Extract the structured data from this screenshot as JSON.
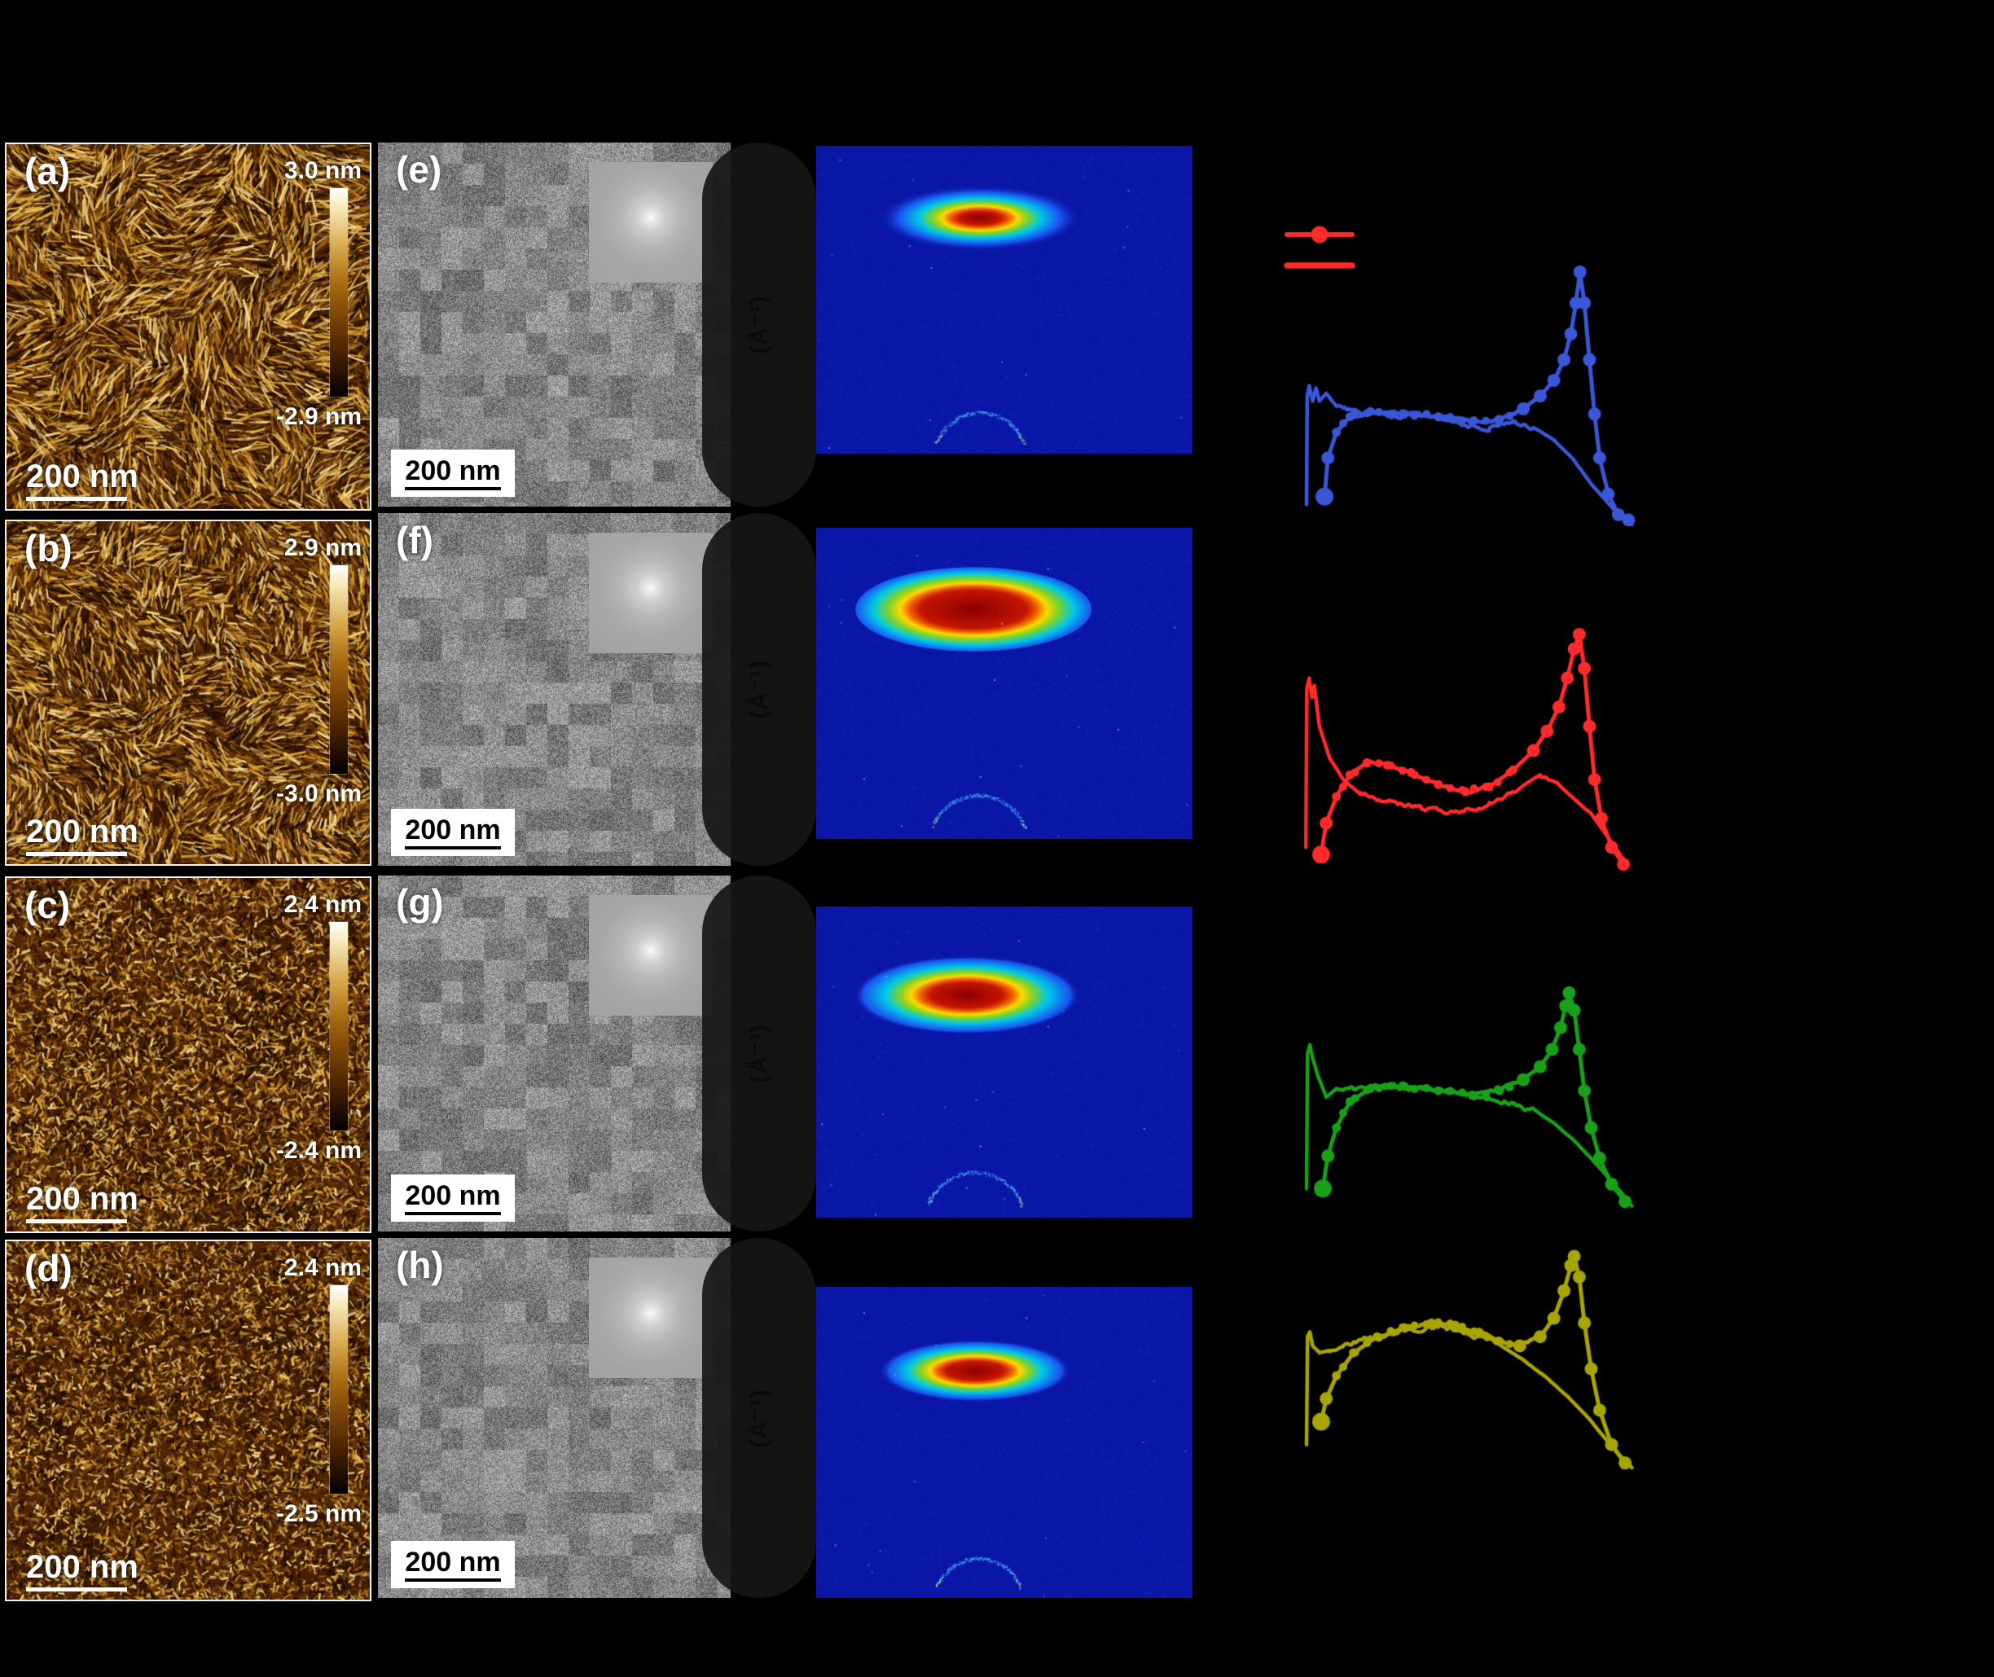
{
  "colors": {
    "background": "#000000",
    "panel_label": "#ffffff",
    "afm_base": "#4e2506",
    "afm_palette": [
      "#170800",
      "#2e1200",
      "#481f00",
      "#613008",
      "#7c440c",
      "#9a5c12",
      "#bc7c1c",
      "#dfa83c",
      "#f7d98c"
    ],
    "giwaxs_bg": "#0a17a6",
    "giwaxs_jet": [
      "#8b0000",
      "#c41500",
      "#f06000",
      "#ffd800",
      "#7fd428",
      "#00c8e8",
      "#1a52f0"
    ],
    "legend_red": "#ff2a2a",
    "row_colors": [
      "#3a57d8",
      "#ff2a2a",
      "#18a018",
      "#a8a400"
    ]
  },
  "afm_panels": [
    {
      "label": "(a)",
      "scale_max": "3.0 nm",
      "scale_min": "-2.9 nm",
      "scalebar": "200 nm"
    },
    {
      "label": "(b)",
      "scale_max": "2.9 nm",
      "scale_min": "-3.0 nm",
      "scalebar": "200 nm"
    },
    {
      "label": "(c)",
      "scale_max": "2.4 nm",
      "scale_min": "-2.4 nm",
      "scalebar": "200 nm"
    },
    {
      "label": "(d)",
      "scale_max": "2.4 nm",
      "scale_min": "-2.5 nm",
      "scalebar": "200 nm"
    }
  ],
  "tem_panels": [
    {
      "label": "(e)",
      "scalebar": "200 nm"
    },
    {
      "label": "(f)",
      "scalebar": "200 nm"
    },
    {
      "label": "(g)",
      "scalebar": "200 nm"
    },
    {
      "label": "(h)",
      "scalebar": "200 nm"
    }
  ],
  "giwaxs_panels": [
    {
      "axis_label": "(Å⁻¹)"
    },
    {
      "axis_label": "(Å⁻¹)"
    },
    {
      "axis_label": "(Å⁻¹)"
    },
    {
      "axis_label": "(Å⁻¹)"
    }
  ],
  "legend": {
    "color": "#ff2a2a",
    "items": [
      {
        "symbol": "line-with-circle-marker"
      },
      {
        "symbol": "solid-line"
      }
    ]
  },
  "chart_data": [
    {
      "type": "line",
      "row": 1,
      "color": "#3a57d8",
      "title": "",
      "xlabel": "",
      "ylabel": "",
      "axes_visible": false,
      "series": [
        {
          "name": "marked-profile",
          "marker": "circle",
          "points": [
            [
              0.065,
              0.13
            ],
            [
              0.075,
              0.28
            ],
            [
              0.1,
              0.38
            ],
            [
              0.14,
              0.44
            ],
            [
              0.2,
              0.46
            ],
            [
              0.3,
              0.45
            ],
            [
              0.4,
              0.44
            ],
            [
              0.5,
              0.42
            ],
            [
              0.58,
              0.43
            ],
            [
              0.65,
              0.47
            ],
            [
              0.7,
              0.52
            ],
            [
              0.74,
              0.58
            ],
            [
              0.77,
              0.66
            ],
            [
              0.79,
              0.76
            ],
            [
              0.805,
              0.88
            ],
            [
              0.817,
              1.0
            ],
            [
              0.83,
              0.88
            ],
            [
              0.845,
              0.66
            ],
            [
              0.86,
              0.45
            ],
            [
              0.875,
              0.28
            ],
            [
              0.9,
              0.14
            ],
            [
              0.93,
              0.06
            ],
            [
              0.96,
              0.04
            ]
          ]
        },
        {
          "name": "plain-profile",
          "points": [
            [
              0.012,
              0.1
            ],
            [
              0.014,
              0.52
            ],
            [
              0.02,
              0.56
            ],
            [
              0.03,
              0.5
            ],
            [
              0.04,
              0.55
            ],
            [
              0.05,
              0.5
            ],
            [
              0.07,
              0.53
            ],
            [
              0.1,
              0.48
            ],
            [
              0.15,
              0.46
            ],
            [
              0.25,
              0.46
            ],
            [
              0.35,
              0.44
            ],
            [
              0.45,
              0.41
            ],
            [
              0.55,
              0.4
            ],
            [
              0.62,
              0.42
            ],
            [
              0.68,
              0.4
            ],
            [
              0.74,
              0.35
            ],
            [
              0.8,
              0.27
            ],
            [
              0.85,
              0.18
            ],
            [
              0.89,
              0.12
            ],
            [
              0.93,
              0.06
            ],
            [
              0.97,
              0.03
            ]
          ]
        }
      ]
    },
    {
      "type": "line",
      "row": 2,
      "color": "#ff2a2a",
      "title": "",
      "xlabel": "",
      "ylabel": "",
      "axes_visible": false,
      "series": [
        {
          "name": "marked-profile",
          "marker": "circle",
          "points": [
            [
              0.055,
              0.09
            ],
            [
              0.07,
              0.22
            ],
            [
              0.1,
              0.33
            ],
            [
              0.14,
              0.42
            ],
            [
              0.19,
              0.47
            ],
            [
              0.25,
              0.46
            ],
            [
              0.32,
              0.43
            ],
            [
              0.4,
              0.38
            ],
            [
              0.48,
              0.35
            ],
            [
              0.55,
              0.37
            ],
            [
              0.62,
              0.44
            ],
            [
              0.68,
              0.52
            ],
            [
              0.72,
              0.6
            ],
            [
              0.755,
              0.7
            ],
            [
              0.78,
              0.82
            ],
            [
              0.8,
              0.94
            ],
            [
              0.815,
              1.0
            ],
            [
              0.83,
              0.86
            ],
            [
              0.845,
              0.62
            ],
            [
              0.86,
              0.4
            ],
            [
              0.88,
              0.24
            ],
            [
              0.91,
              0.12
            ],
            [
              0.945,
              0.05
            ]
          ]
        },
        {
          "name": "plain-profile",
          "points": [
            [
              0.01,
              0.12
            ],
            [
              0.013,
              0.78
            ],
            [
              0.02,
              0.82
            ],
            [
              0.028,
              0.74
            ],
            [
              0.035,
              0.79
            ],
            [
              0.05,
              0.62
            ],
            [
              0.08,
              0.49
            ],
            [
              0.12,
              0.4
            ],
            [
              0.17,
              0.34
            ],
            [
              0.25,
              0.31
            ],
            [
              0.35,
              0.28
            ],
            [
              0.45,
              0.26
            ],
            [
              0.55,
              0.3
            ],
            [
              0.63,
              0.36
            ],
            [
              0.7,
              0.42
            ],
            [
              0.75,
              0.38
            ],
            [
              0.8,
              0.32
            ],
            [
              0.85,
              0.26
            ],
            [
              0.9,
              0.16
            ],
            [
              0.95,
              0.06
            ]
          ]
        }
      ]
    },
    {
      "type": "line",
      "row": 3,
      "color": "#18a018",
      "title": "",
      "xlabel": "",
      "ylabel": "",
      "axes_visible": false,
      "series": [
        {
          "name": "marked-profile",
          "marker": "circle",
          "points": [
            [
              0.06,
              0.1
            ],
            [
              0.075,
              0.25
            ],
            [
              0.1,
              0.38
            ],
            [
              0.14,
              0.5
            ],
            [
              0.2,
              0.56
            ],
            [
              0.3,
              0.57
            ],
            [
              0.4,
              0.55
            ],
            [
              0.5,
              0.53
            ],
            [
              0.58,
              0.55
            ],
            [
              0.65,
              0.6
            ],
            [
              0.7,
              0.66
            ],
            [
              0.735,
              0.74
            ],
            [
              0.76,
              0.84
            ],
            [
              0.775,
              0.94
            ],
            [
              0.785,
              1.0
            ],
            [
              0.8,
              0.92
            ],
            [
              0.815,
              0.74
            ],
            [
              0.83,
              0.55
            ],
            [
              0.85,
              0.38
            ],
            [
              0.875,
              0.24
            ],
            [
              0.91,
              0.12
            ],
            [
              0.95,
              0.04
            ]
          ]
        },
        {
          "name": "plain-profile",
          "points": [
            [
              0.012,
              0.1
            ],
            [
              0.015,
              0.72
            ],
            [
              0.022,
              0.76
            ],
            [
              0.03,
              0.7
            ],
            [
              0.045,
              0.62
            ],
            [
              0.07,
              0.52
            ],
            [
              0.1,
              0.56
            ],
            [
              0.15,
              0.57
            ],
            [
              0.25,
              0.58
            ],
            [
              0.35,
              0.56
            ],
            [
              0.45,
              0.54
            ],
            [
              0.55,
              0.52
            ],
            [
              0.62,
              0.5
            ],
            [
              0.68,
              0.46
            ],
            [
              0.74,
              0.4
            ],
            [
              0.8,
              0.32
            ],
            [
              0.85,
              0.24
            ],
            [
              0.9,
              0.15
            ],
            [
              0.94,
              0.08
            ],
            [
              0.97,
              0.02
            ]
          ]
        }
      ]
    },
    {
      "type": "line",
      "row": 4,
      "color": "#a8a400",
      "title": "",
      "xlabel": "",
      "ylabel": "",
      "axes_visible": false,
      "series": [
        {
          "name": "marked-profile",
          "marker": "circle",
          "points": [
            [
              0.055,
              0.25
            ],
            [
              0.07,
              0.35
            ],
            [
              0.1,
              0.45
            ],
            [
              0.15,
              0.55
            ],
            [
              0.22,
              0.62
            ],
            [
              0.3,
              0.66
            ],
            [
              0.38,
              0.68
            ],
            [
              0.45,
              0.67
            ],
            [
              0.52,
              0.64
            ],
            [
              0.58,
              0.6
            ],
            [
              0.64,
              0.58
            ],
            [
              0.7,
              0.62
            ],
            [
              0.74,
              0.7
            ],
            [
              0.77,
              0.82
            ],
            [
              0.79,
              0.93
            ],
            [
              0.8,
              0.97
            ],
            [
              0.815,
              0.88
            ],
            [
              0.83,
              0.68
            ],
            [
              0.85,
              0.48
            ],
            [
              0.875,
              0.3
            ],
            [
              0.91,
              0.15
            ],
            [
              0.95,
              0.07
            ]
          ]
        },
        {
          "name": "plain-profile",
          "points": [
            [
              0.012,
              0.15
            ],
            [
              0.015,
              0.62
            ],
            [
              0.022,
              0.64
            ],
            [
              0.03,
              0.58
            ],
            [
              0.05,
              0.55
            ],
            [
              0.08,
              0.56
            ],
            [
              0.12,
              0.58
            ],
            [
              0.2,
              0.62
            ],
            [
              0.3,
              0.65
            ],
            [
              0.4,
              0.66
            ],
            [
              0.5,
              0.63
            ],
            [
              0.58,
              0.58
            ],
            [
              0.65,
              0.52
            ],
            [
              0.72,
              0.44
            ],
            [
              0.78,
              0.36
            ],
            [
              0.84,
              0.27
            ],
            [
              0.89,
              0.18
            ],
            [
              0.93,
              0.11
            ],
            [
              0.97,
              0.05
            ]
          ]
        }
      ]
    },
    {
      "type": "heatmap",
      "name": "giwaxs-2d-patterns",
      "panels": [
        {
          "cx": 0.435,
          "cy": 0.235,
          "rx": 0.27,
          "ry": 0.106,
          "core": 0.2,
          "arc_cx": 0.435,
          "arc_r": 0.123
        },
        {
          "cx": 0.418,
          "cy": 0.262,
          "rx": 0.314,
          "ry": 0.136,
          "core": 0.45,
          "arc_cx": 0.43,
          "arc_r": 0.13
        },
        {
          "cx": 0.4,
          "cy": 0.285,
          "rx": 0.3,
          "ry": 0.126,
          "core": 0.32,
          "arc_cx": 0.42,
          "arc_r": 0.134
        },
        {
          "cx": 0.422,
          "cy": 0.27,
          "rx": 0.255,
          "ry": 0.1,
          "core": 0.3,
          "arc_cx": 0.43,
          "arc_r": 0.119
        }
      ]
    }
  ]
}
